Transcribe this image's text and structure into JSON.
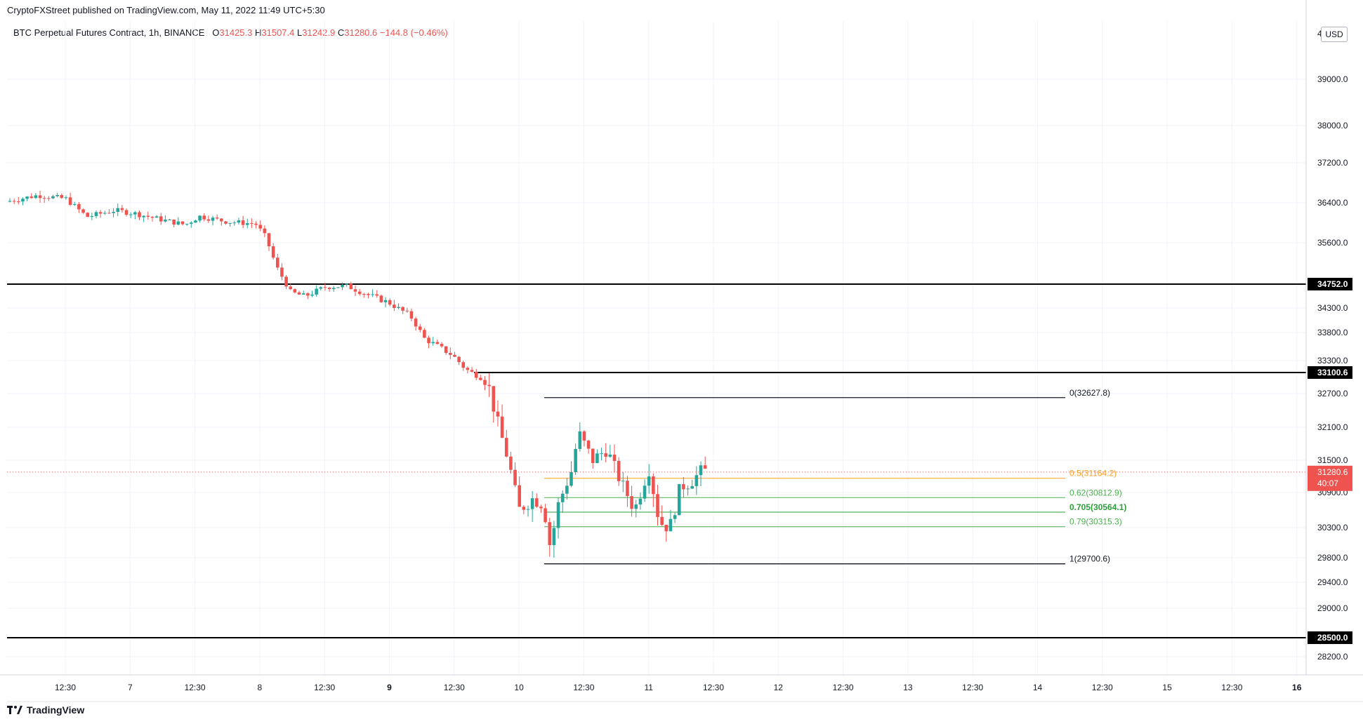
{
  "header": {
    "publisher": "CryptoFXStreet published on TradingView.com, May 11, 2022 11:49 UTC+5:30",
    "symbol": "BTC Perpetual Futures Contract, 1h, BINANCE",
    "open_label": "O",
    "open": "31425.3",
    "high_label": "H",
    "high": "31507.4",
    "low_label": "L",
    "low": "31242.9",
    "close_label": "C",
    "close": "31280.6",
    "change": "−144.8 (−0.46%)",
    "currency": "USD"
  },
  "footer": {
    "brand": "TradingView"
  },
  "chart_data": {
    "type": "candlestick",
    "title": "BTC Perpetual Futures Contract, 1h, BINANCE",
    "x_ticks": [
      "12:30",
      "7",
      "12:30",
      "8",
      "12:30",
      "9",
      "12:30",
      "10",
      "12:30",
      "11",
      "12:30",
      "12",
      "12:30",
      "13",
      "12:30",
      "14",
      "12:30",
      "15",
      "12:30",
      "16"
    ],
    "y_ticks": [
      "39000.0",
      "38000.0",
      "37200.0",
      "36400.0",
      "35600.0",
      "34300.0",
      "33800.0",
      "33300.0",
      "32700.0",
      "32100.0",
      "31500.0",
      "30900.0",
      "30300.0",
      "29800.0",
      "29400.0",
      "29000.0",
      "28200.0"
    ],
    "axis_labels": {
      "top_partial": "4",
      "resistance_1": "34752.0",
      "resistance_2": "33100.6",
      "support_1": "28500.0",
      "last_price": "31280.6",
      "countdown": "40:07"
    },
    "horizontal_levels": [
      {
        "name": "resistance_1",
        "price": 34752.0,
        "color": "#000000"
      },
      {
        "name": "resistance_2",
        "price": 33100.6,
        "color": "#000000"
      },
      {
        "name": "support_1",
        "price": 28500.0,
        "color": "#000000"
      }
    ],
    "last_price": 31280.6,
    "fibonacci": [
      {
        "label": "0(32627.8)",
        "ratio": 0,
        "price": 32627.8,
        "color": "#131722"
      },
      {
        "label": "0.5(31164.2)",
        "ratio": 0.5,
        "price": 31164.2,
        "color": "#f59d22"
      },
      {
        "label": "0.62(30812.9)",
        "ratio": 0.62,
        "price": 30812.9,
        "color": "#4caf50"
      },
      {
        "label": "0.705(30564.1)",
        "ratio": 0.705,
        "price": 30564.1,
        "color": "#2e9e3c"
      },
      {
        "label": "0.79(30315.3)",
        "ratio": 0.79,
        "price": 30315.3,
        "color": "#4caf50"
      },
      {
        "label": "1(29700.6)",
        "ratio": 1,
        "price": 29700.6,
        "color": "#131722"
      }
    ],
    "colors": {
      "up": "#26a69a",
      "down": "#ef5350",
      "grid": "#f0f3fa",
      "level": "#000000"
    }
  }
}
